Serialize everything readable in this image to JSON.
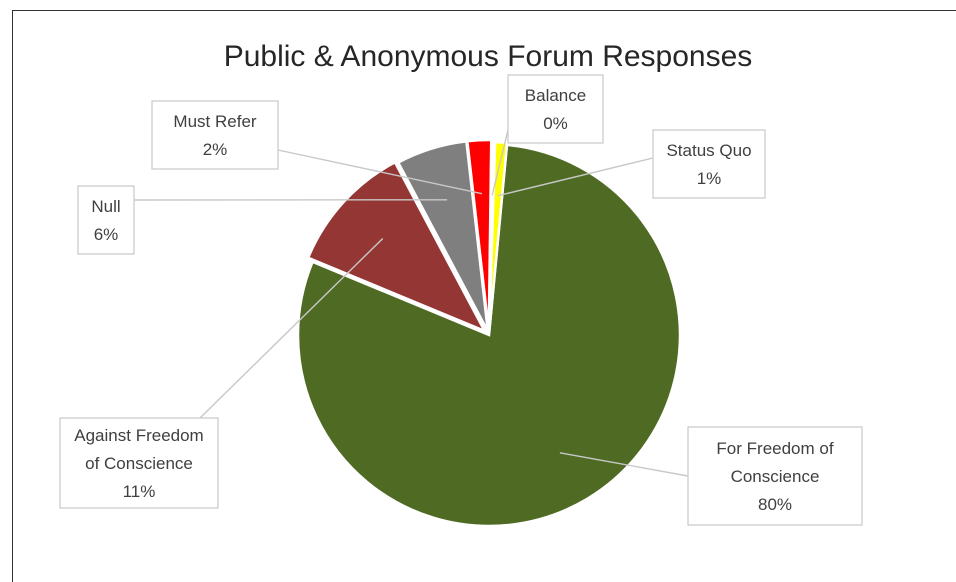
{
  "chart_data": {
    "type": "pie",
    "title": "Public & Anonymous Forum Responses",
    "slices": [
      {
        "label_lines": [
          "For Freedom of",
          "Conscience"
        ],
        "percent_label": "80%",
        "value": 80,
        "color": "#4e6a23"
      },
      {
        "label_lines": [
          "Against Freedom",
          "of Conscience"
        ],
        "percent_label": "11%",
        "value": 11,
        "color": "#943634"
      },
      {
        "label_lines": [
          "Null"
        ],
        "percent_label": "6%",
        "value": 6,
        "color": "#7f7f7f"
      },
      {
        "label_lines": [
          "Must Refer"
        ],
        "percent_label": "2%",
        "value": 2,
        "color": "#ff0000"
      },
      {
        "label_lines": [
          "Balance"
        ],
        "percent_label": "0%",
        "value": 0.3,
        "color": "#ffffff"
      },
      {
        "label_lines": [
          "Status Quo"
        ],
        "percent_label": "1%",
        "value": 1,
        "color": "#ffff00"
      }
    ],
    "legend": "none",
    "data_labels": "outside with leader lines"
  }
}
